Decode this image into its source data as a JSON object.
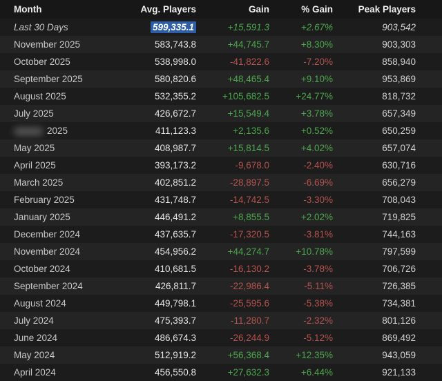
{
  "colors": {
    "positive_gain": "#4da64d",
    "negative_gain": "#b5534f",
    "selection_highlight": "#2e5fa6",
    "background": "#141414"
  },
  "chart_data": {
    "type": "table",
    "title": "Monthly average and peak player statistics",
    "columns": [
      "Month",
      "Avg. Players",
      "Gain",
      "% Gain",
      "Peak Players"
    ],
    "rows": [
      {
        "month": "Last 30 Days",
        "avg_players": "599,335.1",
        "gain": "+15,591.3",
        "pct_gain": "+2.67%",
        "peak_players": "903,542",
        "italic": true,
        "avg_selected": true
      },
      {
        "month": "November 2025",
        "avg_players": "583,743.8",
        "gain": "+44,745.7",
        "pct_gain": "+8.30%",
        "peak_players": "903,303"
      },
      {
        "month": "October 2025",
        "avg_players": "538,998.0",
        "gain": "-41,822.6",
        "pct_gain": "-7.20%",
        "peak_players": "858,940"
      },
      {
        "month": "September 2025",
        "avg_players": "580,820.6",
        "gain": "+48,465.4",
        "pct_gain": "+9.10%",
        "peak_players": "953,869"
      },
      {
        "month": "August 2025",
        "avg_players": "532,355.2",
        "gain": "+105,682.5",
        "pct_gain": "+24.77%",
        "peak_players": "818,732"
      },
      {
        "month": "July 2025",
        "avg_players": "426,672.7",
        "gain": "+15,549.4",
        "pct_gain": "+3.78%",
        "peak_players": "657,349"
      },
      {
        "month": "2025",
        "avg_players": "411,123.3",
        "gain": "+2,135.6",
        "pct_gain": "+0.52%",
        "peak_players": "650,259",
        "blurred_month_prefix": true
      },
      {
        "month": "May 2025",
        "avg_players": "408,987.7",
        "gain": "+15,814.5",
        "pct_gain": "+4.02%",
        "peak_players": "657,074"
      },
      {
        "month": "April 2025",
        "avg_players": "393,173.2",
        "gain": "-9,678.0",
        "pct_gain": "-2.40%",
        "peak_players": "630,716"
      },
      {
        "month": "March 2025",
        "avg_players": "402,851.2",
        "gain": "-28,897.5",
        "pct_gain": "-6.69%",
        "peak_players": "656,279"
      },
      {
        "month": "February 2025",
        "avg_players": "431,748.7",
        "gain": "-14,742.5",
        "pct_gain": "-3.30%",
        "peak_players": "708,043"
      },
      {
        "month": "January 2025",
        "avg_players": "446,491.2",
        "gain": "+8,855.5",
        "pct_gain": "+2.02%",
        "peak_players": "719,825"
      },
      {
        "month": "December 2024",
        "avg_players": "437,635.7",
        "gain": "-17,320.5",
        "pct_gain": "-3.81%",
        "peak_players": "744,163"
      },
      {
        "month": "November 2024",
        "avg_players": "454,956.2",
        "gain": "+44,274.7",
        "pct_gain": "+10.78%",
        "peak_players": "797,599"
      },
      {
        "month": "October 2024",
        "avg_players": "410,681.5",
        "gain": "-16,130.2",
        "pct_gain": "-3.78%",
        "peak_players": "706,726"
      },
      {
        "month": "September 2024",
        "avg_players": "426,811.7",
        "gain": "-22,986.4",
        "pct_gain": "-5.11%",
        "peak_players": "726,385"
      },
      {
        "month": "August 2024",
        "avg_players": "449,798.1",
        "gain": "-25,595.6",
        "pct_gain": "-5.38%",
        "peak_players": "734,381"
      },
      {
        "month": "July 2024",
        "avg_players": "475,393.7",
        "gain": "-11,280.7",
        "pct_gain": "-2.32%",
        "peak_players": "801,126"
      },
      {
        "month": "June 2024",
        "avg_players": "486,674.3",
        "gain": "-26,244.9",
        "pct_gain": "-5.12%",
        "peak_players": "869,492"
      },
      {
        "month": "May 2024",
        "avg_players": "512,919.2",
        "gain": "+56,368.4",
        "pct_gain": "+12.35%",
        "peak_players": "943,059"
      },
      {
        "month": "April 2024",
        "avg_players": "456,550.8",
        "gain": "+27,632.3",
        "pct_gain": "+6.44%",
        "peak_players": "921,133"
      }
    ]
  }
}
